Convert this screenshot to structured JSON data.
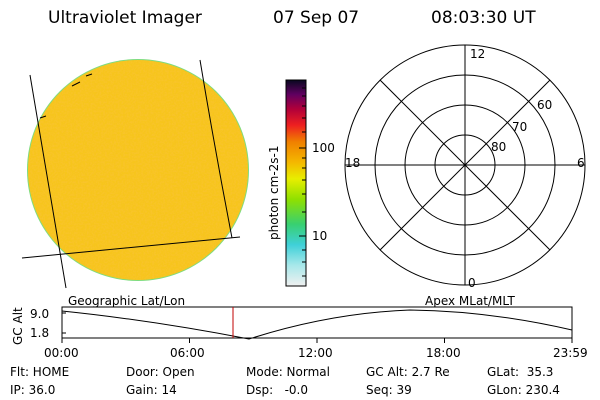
{
  "header": {
    "title": "Ultraviolet Imager",
    "date": "07 Sep 07",
    "time": "08:03:30 UT"
  },
  "colorbar": {
    "label": "photon cm-2s-1",
    "ticks": [
      "100",
      "10"
    ]
  },
  "polar_plot": {
    "mlt_labels": {
      "top": "12",
      "left": "18",
      "right": "6",
      "bottom": "0"
    },
    "mlat_labels": [
      "60",
      "70",
      "80"
    ]
  },
  "captions": {
    "left": "Geographic Lat/Lon",
    "right": "Apex MLat/MLT"
  },
  "orbit_panel": {
    "ylabel": "GC Alt",
    "yticks": [
      "9.0",
      "1.8"
    ],
    "xticks": [
      "00:00",
      "06:00",
      "12:00",
      "18:00",
      "23:59"
    ],
    "marker_time": "08:03:30",
    "marker_color": "#c00000"
  },
  "info": {
    "row1": {
      "flt": "Flt: HOME",
      "door": "Door: Open",
      "mode": "Mode: Normal",
      "gcalt": "GC Alt: 2.7 Re",
      "glat": "GLat:  35.3"
    },
    "row2": {
      "ip": "IP: 36.0",
      "gain": "Gain: 14",
      "dsp": "Dsp:   -0.0",
      "seq": "Seq: 39",
      "glon": "GLon: 230.4"
    }
  },
  "colors": {
    "earth_disk": "#f7c51c",
    "disk_edge": "#7fdc7f",
    "colorbar_stops": [
      "#f0f0f0",
      "#4fd8d8",
      "#8fe000",
      "#f0f000",
      "#f0a000",
      "#ee2020",
      "#800060",
      "#000030"
    ]
  }
}
